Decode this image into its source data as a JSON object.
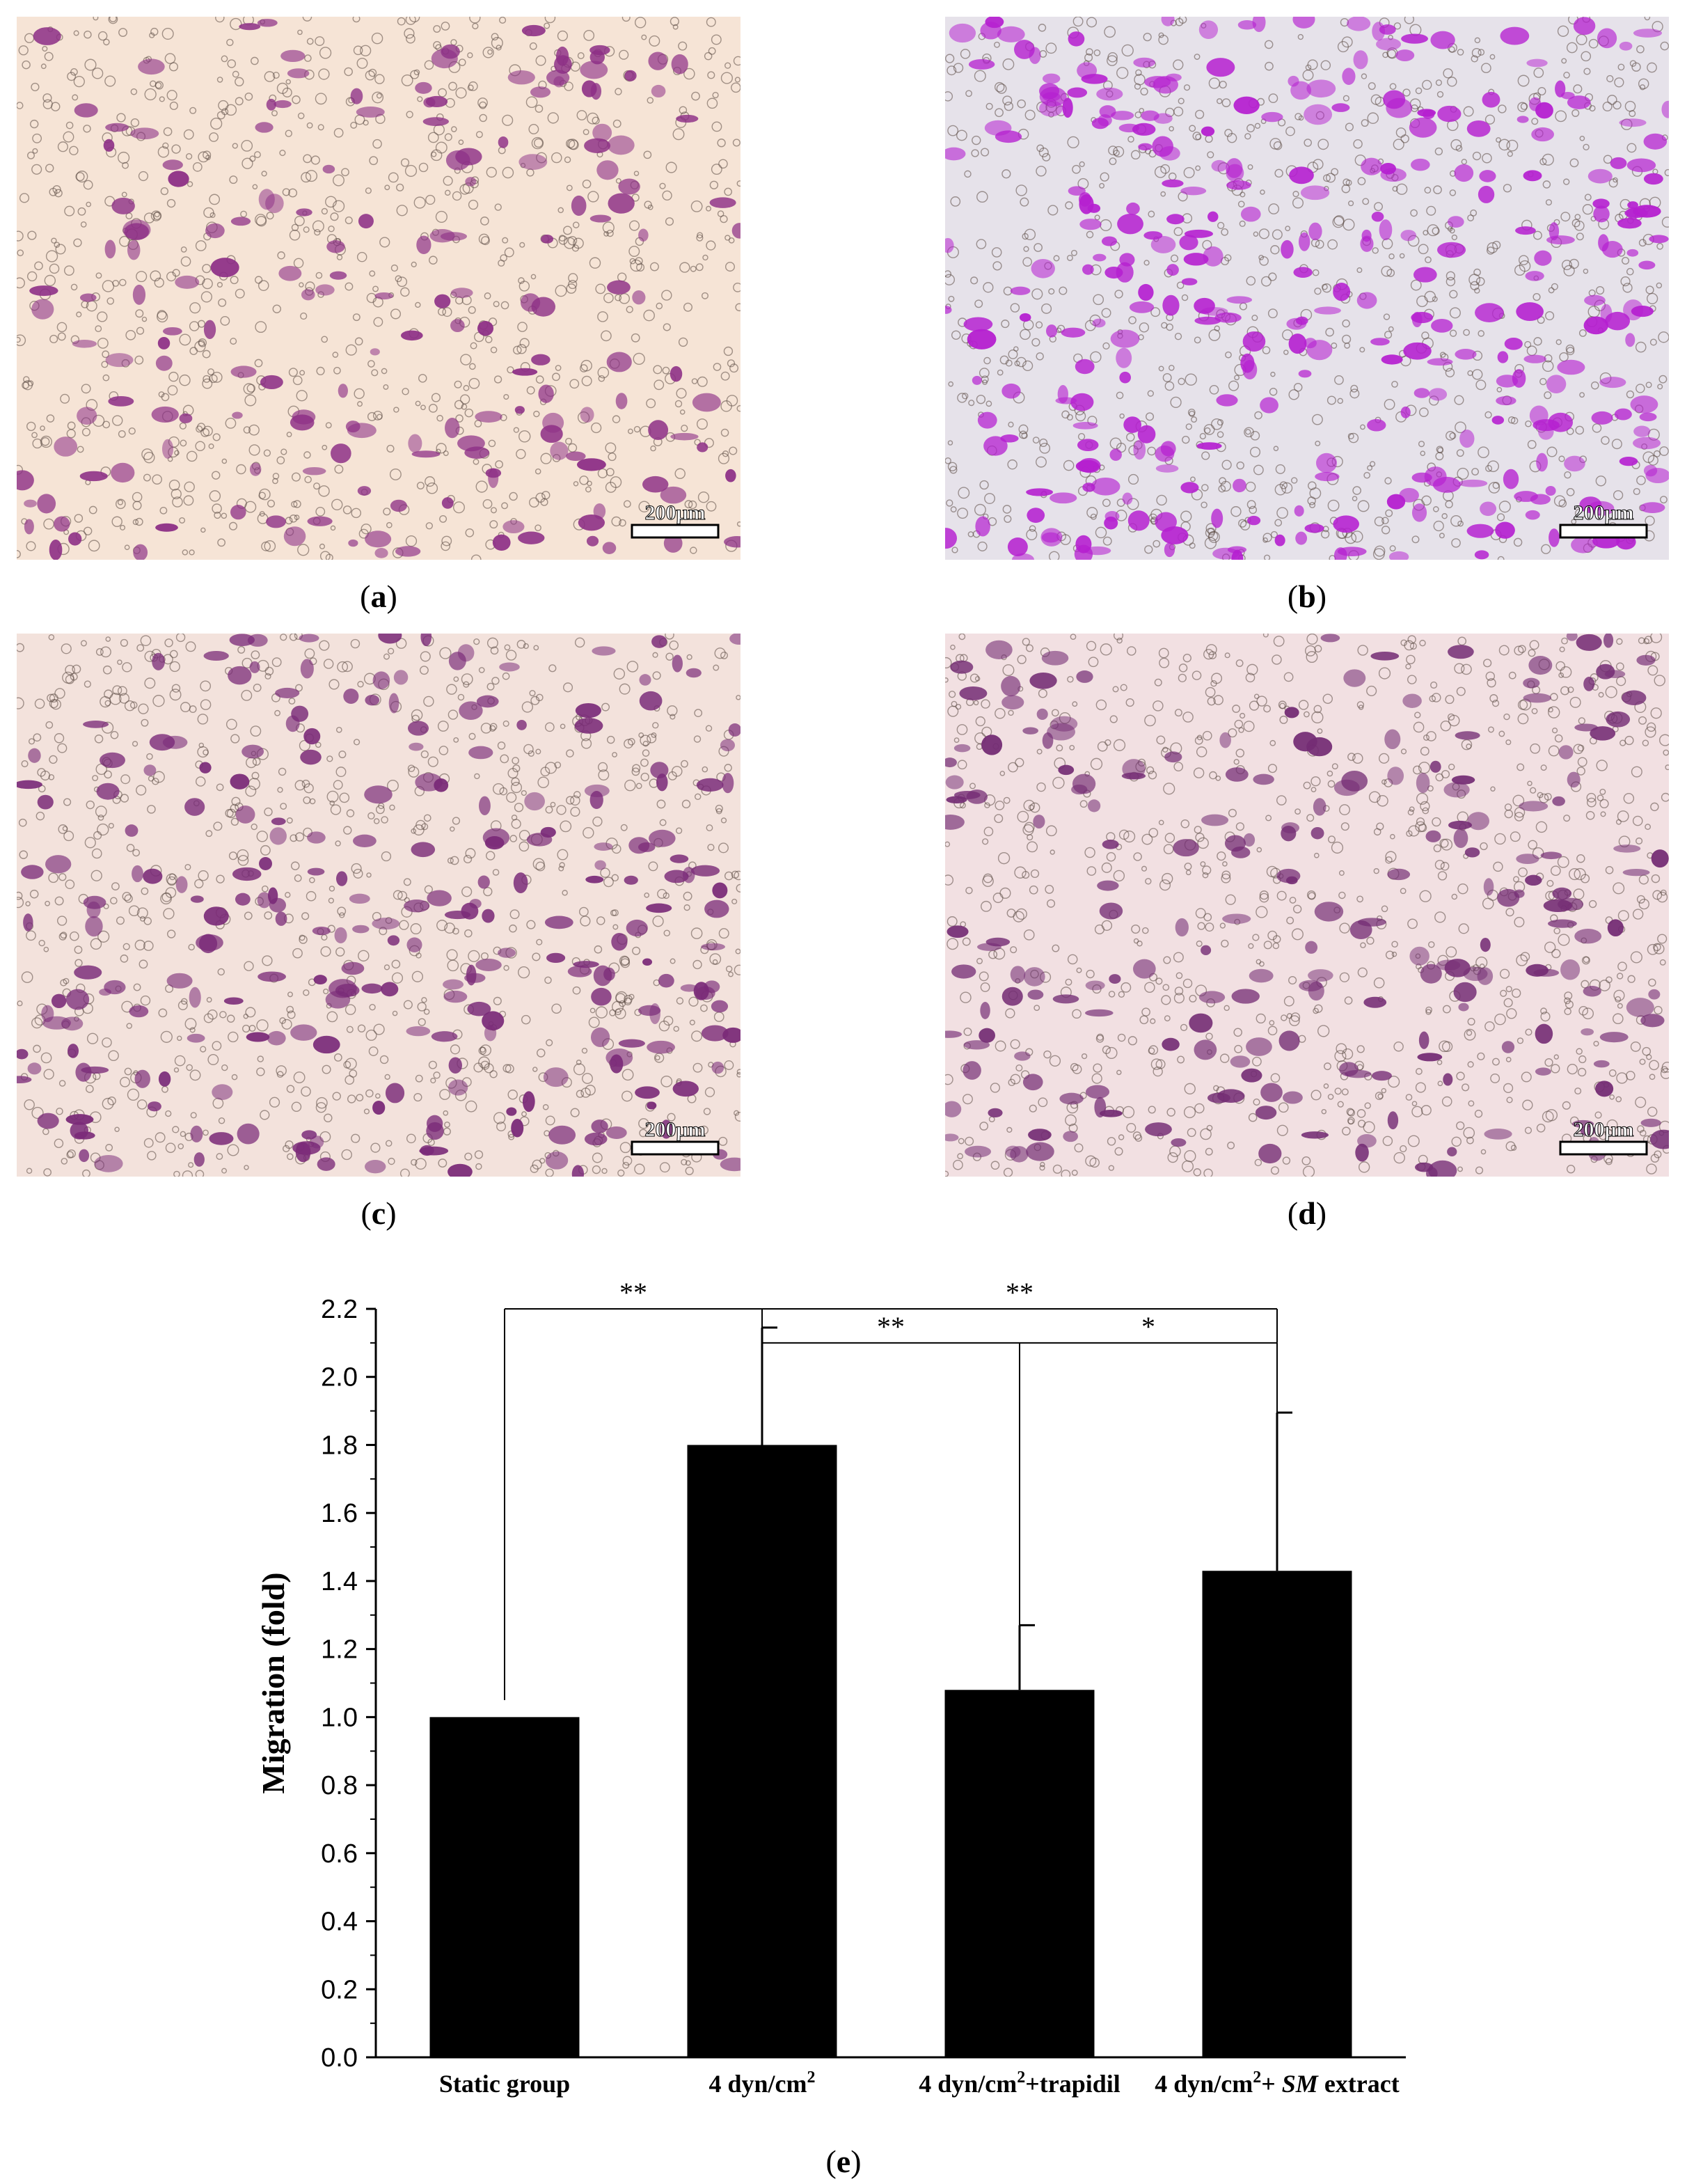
{
  "panels": [
    {
      "id": "a",
      "caption_letter": "a",
      "scale_bar_label": "200μm",
      "background": "#f6e4d6",
      "stain_color": "#8d2f86",
      "density": 0.55
    },
    {
      "id": "b",
      "caption_letter": "b",
      "scale_bar_label": "200μm",
      "background": "#e6e2ea",
      "stain_color": "#b51fd0",
      "density": 1.0
    },
    {
      "id": "c",
      "caption_letter": "c",
      "scale_bar_label": "200μm",
      "background": "#f3e2dc",
      "stain_color": "#7a2a78",
      "density": 0.75
    },
    {
      "id": "d",
      "caption_letter": "d",
      "scale_bar_label": "200μm",
      "background": "#f2e0e2",
      "stain_color": "#742c74",
      "density": 0.65
    }
  ],
  "chart_caption_letter": "e",
  "chart_data": {
    "type": "bar",
    "categories": [
      {
        "parts": [
          {
            "text": "Static group",
            "style": "normal"
          }
        ]
      },
      {
        "parts": [
          {
            "text": "4 dyn/cm",
            "style": "normal"
          },
          {
            "text": "2",
            "style": "sup"
          }
        ]
      },
      {
        "parts": [
          {
            "text": "4 dyn/cm",
            "style": "normal"
          },
          {
            "text": "2",
            "style": "sup"
          },
          {
            "text": "+trapidil",
            "style": "normal"
          }
        ]
      },
      {
        "parts": [
          {
            "text": "4 dyn/cm",
            "style": "normal"
          },
          {
            "text": "2",
            "style": "sup"
          },
          {
            "text": "+ ",
            "style": "normal"
          },
          {
            "text": "SM",
            "style": "italic"
          },
          {
            "text": " extract",
            "style": "normal"
          }
        ]
      }
    ],
    "values": [
      1.0,
      1.8,
      1.08,
      1.43
    ],
    "error_upper": [
      0.0,
      0.345,
      0.19,
      0.465
    ],
    "ylabel": "Migration (fold)",
    "ylim": [
      0.0,
      2.2
    ],
    "yticks": [
      0.0,
      0.2,
      0.4,
      0.6,
      0.8,
      1.0,
      1.2,
      1.4,
      1.6,
      1.8,
      2.0,
      2.2
    ],
    "ytick_labels": [
      "0.0",
      "0.2",
      "0.4",
      "0.6",
      "0.8",
      "1.0",
      "1.2",
      "1.4",
      "1.6",
      "1.8",
      "2.0",
      "2.2"
    ],
    "bar_color": "#000000",
    "significance": [
      {
        "from": 0,
        "to": 1,
        "level": 2.2,
        "label": "**"
      },
      {
        "from": 1,
        "to": 3,
        "level": 2.2,
        "label": "**"
      },
      {
        "from": 1,
        "to": 2,
        "level": 2.1,
        "label": "**"
      },
      {
        "from": 2,
        "to": 3,
        "level": 2.1,
        "label": "*"
      }
    ]
  }
}
